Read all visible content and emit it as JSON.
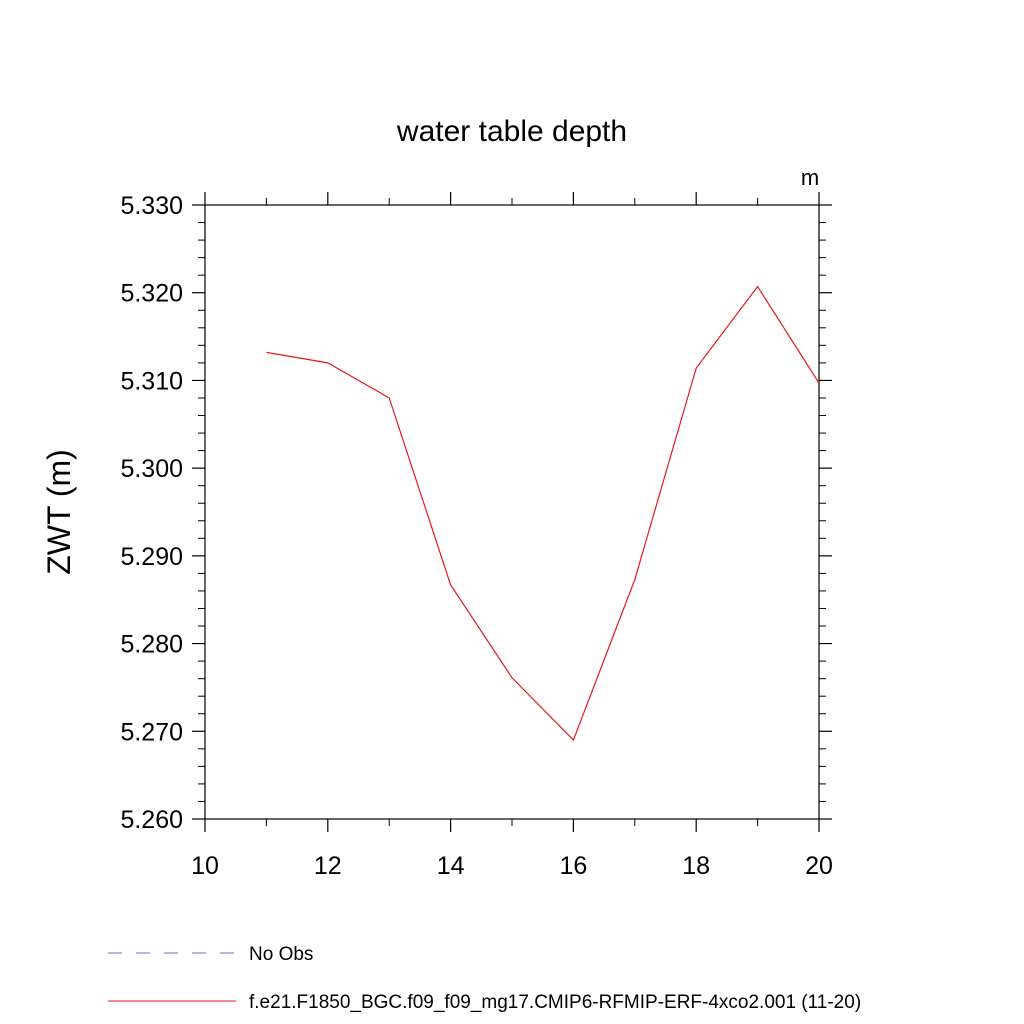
{
  "chart_data": {
    "type": "line",
    "title": "water table depth",
    "units_label": "m",
    "ylabel": "ZWT  (m)",
    "xlabel": "",
    "xlim": [
      10,
      20
    ],
    "ylim": [
      5.26,
      5.33
    ],
    "xticks": [
      "10",
      "12",
      "14",
      "16",
      "18",
      "20"
    ],
    "yticks": [
      "5.260",
      "5.270",
      "5.280",
      "5.290",
      "5.300",
      "5.310",
      "5.320",
      "5.330"
    ],
    "grid": false,
    "legend_position": "bottom",
    "series": [
      {
        "name": "No Obs",
        "color": "#7b68c8",
        "dash": "dashed",
        "x": [],
        "y": []
      },
      {
        "name": "f.e21.F1850_BGC.f09_f09_mg17.CMIP6-RFMIP-ERF-4xco2.001 (11-20)",
        "color": "#e31a1c",
        "dash": "solid",
        "x": [
          11,
          12,
          13,
          14,
          15,
          16,
          17,
          18,
          19,
          20
        ],
        "y": [
          5.3132,
          5.312,
          5.308,
          5.2867,
          5.2761,
          5.269,
          5.2873,
          5.3114,
          5.3207,
          5.3097
        ]
      }
    ]
  }
}
